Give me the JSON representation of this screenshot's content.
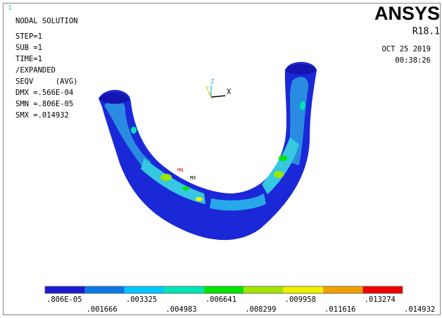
{
  "window_number": "1",
  "info": {
    "title": "NODAL SOLUTION",
    "lines": [
      "STEP=1",
      "SUB =1",
      "TIME=1",
      "/EXPANDED",
      "SEQV     (AVG)",
      "DMX =.566E-04",
      "SMN =.806E-05",
      "SMX =.014932"
    ]
  },
  "logo": {
    "name": "ANSYS",
    "release": "R18.1",
    "date": "OCT 25 2019",
    "time": "00:38:26"
  },
  "triad": {
    "z": "Z",
    "x": "X",
    "y": "Y"
  },
  "markers": {
    "min": "MN",
    "max": "MX"
  },
  "legend": {
    "colors": [
      "#1b1bd0",
      "#0a78e6",
      "#00c8ff",
      "#00e6b4",
      "#00e600",
      "#a0e600",
      "#f0f000",
      "#f0a000",
      "#f00000"
    ],
    "labels": [
      ".806E-05",
      ".001666",
      ".003325",
      ".004983",
      ".006641",
      ".008299",
      ".009958",
      ".011616",
      ".013274",
      ".014932"
    ]
  }
}
